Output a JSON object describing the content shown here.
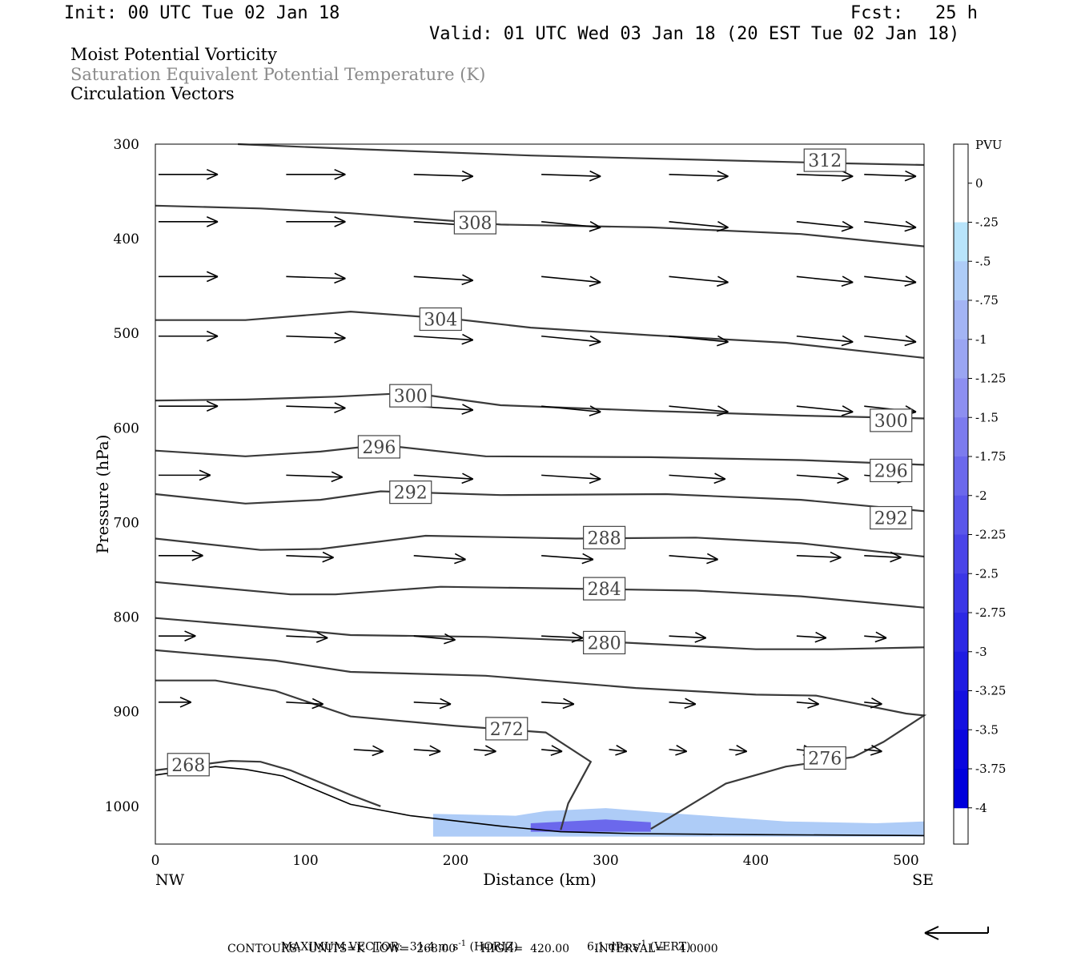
{
  "header": {
    "init": "Init: 00 UTC Tue 02 Jan 18",
    "fcst": "Fcst:   25 h",
    "valid": "Valid: 01 UTC Wed 03 Jan 18 (20 EST Tue 02 Jan 18)",
    "field1": "Moist Potential Vorticity",
    "field2": "Saturation Equivalent Potential Temperature (K)",
    "field3": "Circulation Vectors"
  },
  "colors": {
    "contour": "#3a3a3a",
    "field2_text": "#8a8a8a",
    "pv_fill": [
      "#ffffff",
      "#ffffff",
      "#b8e4fb",
      "#aeccf7",
      "#a3b4f4",
      "#9aa5f2",
      "#8d8ff0",
      "#7c7bee",
      "#6b68ec",
      "#5a56ea",
      "#4a44e8",
      "#3b36e6",
      "#2c28e4",
      "#1f1ce2",
      "#1410e0",
      "#0a06de",
      "#0000dc"
    ]
  },
  "chart_data": {
    "type": "contour",
    "xlabel": "Distance (km)",
    "ylabel": "Pressure (hPa)",
    "xlim": [
      0,
      512
    ],
    "ylim": [
      300,
      1040
    ],
    "y_reversed": true,
    "x_ticks": [
      "0",
      "100",
      "200",
      "300",
      "400",
      "500"
    ],
    "x_tick_values": [
      0,
      100,
      200,
      300,
      400,
      500
    ],
    "y_ticks": [
      "300",
      "400",
      "500",
      "600",
      "700",
      "800",
      "900",
      "1000"
    ],
    "y_tick_values": [
      300,
      400,
      500,
      600,
      700,
      800,
      900,
      1000
    ],
    "x_endpoints": {
      "left": "NW",
      "right": "SE"
    },
    "colorbar": {
      "title": "PVU",
      "labels": [
        "0",
        "-.25",
        "-.5",
        "-.75",
        "-1",
        "-1.25",
        "-1.5",
        "-1.75",
        "-2",
        "-2.25",
        "-2.5",
        "-2.75",
        "-3",
        "-3.25",
        "-3.5",
        "-3.75",
        "-4"
      ],
      "levels": [
        0,
        -0.25,
        -0.5,
        -0.75,
        -1,
        -1.25,
        -1.5,
        -1.75,
        -2,
        -2.25,
        -2.5,
        -2.75,
        -3,
        -3.25,
        -3.5,
        -3.75,
        -4
      ]
    },
    "contours": [
      {
        "value": 312,
        "label": "312",
        "label_at": [
          446,
          317
        ],
        "points": [
          [
            55,
            300
          ],
          [
            130,
            305
          ],
          [
            250,
            312
          ],
          [
            350,
            316
          ],
          [
            450,
            320
          ],
          [
            512,
            322
          ]
        ]
      },
      {
        "value": 308,
        "label": "308",
        "label_at": [
          213,
          383
        ],
        "points": [
          [
            0,
            365
          ],
          [
            70,
            368
          ],
          [
            130,
            373
          ],
          [
            230,
            385
          ],
          [
            330,
            388
          ],
          [
            430,
            395
          ],
          [
            512,
            408
          ]
        ]
      },
      {
        "value": 304,
        "label": "304",
        "label_at": [
          190,
          485
        ],
        "points": [
          [
            0,
            486
          ],
          [
            60,
            486
          ],
          [
            130,
            477
          ],
          [
            200,
            485
          ],
          [
            250,
            494
          ],
          [
            330,
            502
          ],
          [
            420,
            510
          ],
          [
            512,
            526
          ]
        ]
      },
      {
        "value": 300,
        "label": "300",
        "label_at": [
          170,
          566
        ],
        "points": [
          [
            0,
            571
          ],
          [
            60,
            570
          ],
          [
            120,
            567
          ],
          [
            170,
            563
          ],
          [
            230,
            576
          ],
          [
            330,
            582
          ],
          [
            430,
            587
          ],
          [
            512,
            590
          ]
        ]
      },
      {
        "value": 300,
        "label": "300",
        "label_at": [
          490,
          592
        ],
        "points": []
      },
      {
        "value": 296,
        "label": "296",
        "label_at": [
          149,
          620
        ],
        "points": [
          [
            0,
            624
          ],
          [
            60,
            630
          ],
          [
            110,
            625
          ],
          [
            150,
            618
          ],
          [
            220,
            630
          ],
          [
            330,
            631
          ],
          [
            430,
            634
          ],
          [
            512,
            639
          ]
        ]
      },
      {
        "value": 296,
        "label": "296",
        "label_at": [
          490,
          645
        ],
        "points": []
      },
      {
        "value": 292,
        "label": "292",
        "label_at": [
          170,
          668
        ],
        "points": [
          [
            0,
            670
          ],
          [
            60,
            680
          ],
          [
            110,
            676
          ],
          [
            150,
            667
          ],
          [
            230,
            671
          ],
          [
            340,
            670
          ],
          [
            430,
            676
          ],
          [
            512,
            688
          ]
        ]
      },
      {
        "value": 292,
        "label": "292",
        "label_at": [
          490,
          695
        ],
        "points": []
      },
      {
        "value": 288,
        "label": "288",
        "label_at": [
          299,
          716
        ],
        "points": [
          [
            0,
            717
          ],
          [
            70,
            729
          ],
          [
            110,
            728
          ],
          [
            180,
            714
          ],
          [
            280,
            717
          ],
          [
            360,
            716
          ],
          [
            430,
            722
          ],
          [
            512,
            736
          ]
        ]
      },
      {
        "value": 284,
        "label": "284",
        "label_at": [
          299,
          770
        ],
        "points": [
          [
            0,
            763
          ],
          [
            90,
            776
          ],
          [
            120,
            776
          ],
          [
            190,
            768
          ],
          [
            280,
            770
          ],
          [
            360,
            772
          ],
          [
            430,
            778
          ],
          [
            512,
            790
          ]
        ]
      },
      {
        "value": 280,
        "label": "280",
        "label_at": [
          299,
          827
        ],
        "points": [
          [
            0,
            801
          ],
          [
            90,
            813
          ],
          [
            130,
            819
          ],
          [
            220,
            821
          ],
          [
            300,
            826
          ],
          [
            400,
            834
          ],
          [
            450,
            834
          ],
          [
            512,
            832
          ]
        ]
      },
      {
        "value": 276,
        "label": "276",
        "label_at": [
          446,
          949
        ],
        "points": [
          [
            0,
            835
          ],
          [
            80,
            846
          ],
          [
            130,
            858
          ],
          [
            220,
            862
          ],
          [
            320,
            875
          ],
          [
            400,
            882
          ],
          [
            440,
            883
          ],
          [
            500,
            902
          ],
          [
            512,
            904
          ],
          [
            485,
            932
          ],
          [
            465,
            948
          ],
          [
            420,
            958
          ],
          [
            380,
            976
          ],
          [
            330,
            1024
          ]
        ]
      },
      {
        "value": 272,
        "label": "272",
        "label_at": [
          234,
          918
        ],
        "points": [
          [
            0,
            867
          ],
          [
            40,
            867
          ],
          [
            80,
            878
          ],
          [
            130,
            905
          ],
          [
            200,
            915
          ],
          [
            260,
            922
          ],
          [
            290,
            953
          ],
          [
            275,
            997
          ],
          [
            270,
            1025
          ]
        ]
      },
      {
        "value": 268,
        "label": "268",
        "label_at": [
          22,
          956
        ],
        "points": [
          [
            0,
            962
          ],
          [
            50,
            952
          ],
          [
            70,
            953
          ],
          [
            90,
            962
          ],
          [
            130,
            988
          ],
          [
            150,
            1000
          ]
        ]
      }
    ],
    "terrain": [
      [
        0,
        967
      ],
      [
        40,
        958
      ],
      [
        60,
        961
      ],
      [
        85,
        968
      ],
      [
        130,
        998
      ],
      [
        170,
        1010
      ],
      [
        230,
        1021
      ],
      [
        270,
        1027
      ],
      [
        320,
        1029
      ],
      [
        400,
        1030
      ],
      [
        512,
        1031
      ]
    ],
    "pv_shading": [
      {
        "level": -0.5,
        "points": [
          [
            185,
            1008
          ],
          [
            240,
            1010
          ],
          [
            260,
            1005
          ],
          [
            300,
            1002
          ],
          [
            340,
            1007
          ],
          [
            420,
            1016
          ],
          [
            480,
            1018
          ],
          [
            512,
            1016
          ],
          [
            512,
            1032
          ],
          [
            185,
            1032
          ]
        ]
      },
      {
        "level": -1.75,
        "points": [
          [
            250,
            1018
          ],
          [
            300,
            1014
          ],
          [
            330,
            1017
          ],
          [
            330,
            1027
          ],
          [
            250,
            1027
          ]
        ]
      }
    ],
    "vectors": [
      {
        "p": 332,
        "xs": [
          0,
          85,
          170,
          255,
          340,
          425,
          470
        ],
        "u": [
          40,
          40,
          40,
          40,
          40,
          38,
          35
        ],
        "w": [
          0,
          0,
          -1,
          -1,
          -1,
          -1,
          -1
        ]
      },
      {
        "p": 382,
        "xs": [
          0,
          85,
          170,
          255,
          340,
          425,
          470
        ],
        "u": [
          40,
          40,
          40,
          40,
          40,
          38,
          35
        ],
        "w": [
          0,
          0,
          -2,
          -3,
          -3,
          -3,
          -3
        ]
      },
      {
        "p": 440,
        "xs": [
          0,
          85,
          170,
          255,
          340,
          425,
          470
        ],
        "u": [
          40,
          40,
          40,
          40,
          40,
          38,
          35
        ],
        "w": [
          0,
          -1,
          -2,
          -3,
          -3,
          -3,
          -3
        ]
      },
      {
        "p": 503,
        "xs": [
          0,
          85,
          170,
          255,
          340,
          425,
          470
        ],
        "u": [
          40,
          40,
          40,
          40,
          40,
          38,
          35
        ],
        "w": [
          0,
          -1,
          -2,
          -3,
          -3,
          -3,
          -3
        ]
      },
      {
        "p": 577,
        "xs": [
          0,
          85,
          170,
          255,
          340,
          425,
          470
        ],
        "u": [
          40,
          40,
          40,
          40,
          40,
          38,
          35
        ],
        "w": [
          0,
          -1,
          -2,
          -3,
          -3,
          -3,
          -3
        ]
      },
      {
        "p": 650,
        "xs": [
          0,
          85,
          170,
          255,
          340,
          425,
          470
        ],
        "u": [
          35,
          38,
          40,
          40,
          38,
          35,
          30
        ],
        "w": [
          0,
          -1,
          -2,
          -2,
          -2,
          -2,
          -2
        ]
      },
      {
        "p": 735,
        "xs": [
          0,
          85,
          170,
          255,
          340,
          425,
          470
        ],
        "u": [
          30,
          32,
          35,
          35,
          33,
          30,
          25
        ],
        "w": [
          0,
          -1,
          -2,
          -2,
          -2,
          -1,
          -1
        ]
      },
      {
        "p": 820,
        "xs": [
          0,
          85,
          170,
          255,
          340,
          425,
          470
        ],
        "u": [
          25,
          28,
          28,
          28,
          25,
          20,
          15
        ],
        "w": [
          0,
          -1,
          -2,
          -1,
          -1,
          -1,
          -1
        ]
      },
      {
        "p": 890,
        "xs": [
          0,
          85,
          170,
          255,
          340,
          425,
          470
        ],
        "u": [
          22,
          25,
          25,
          22,
          18,
          15,
          12
        ],
        "w": [
          0,
          -1,
          -1,
          -1,
          -1,
          -1,
          -1
        ]
      },
      {
        "p": 940,
        "xs": [
          130,
          170,
          210,
          255,
          300,
          340,
          380,
          425,
          470
        ],
        "u": [
          20,
          18,
          15,
          14,
          12,
          12,
          12,
          12,
          12
        ],
        "w": [
          -1,
          -1,
          -1,
          -1,
          -1,
          -1,
          -1,
          -1,
          -1
        ]
      }
    ]
  },
  "footer": {
    "line1a": "MAXIMUM VECTOR:  31.4 m s",
    "line1b": "(HORIZ)",
    "line1c": "6.1 dPa s",
    "line1d": "(VERT)",
    "sup": "-1",
    "line2": "CONTOURS:  UNITS=K  LOW=  268.00       HIGH=  420.00       INTERVAL=    4.0000"
  }
}
